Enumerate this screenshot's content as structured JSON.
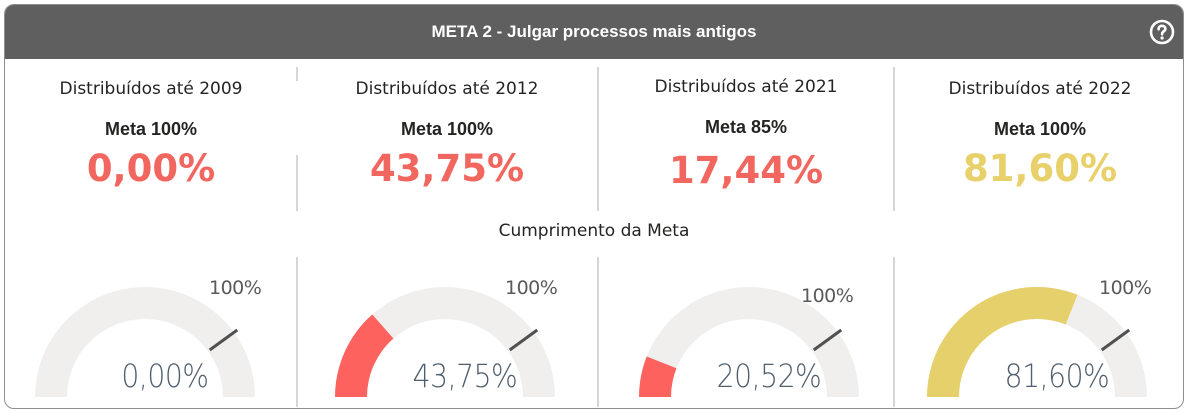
{
  "header": {
    "title": "META 2 - Julgar processos mais antigos",
    "help_icon": "question-circle-icon"
  },
  "cards": [
    {
      "title": "Distribuídos até 2009",
      "meta": "Meta 100%",
      "value": "0,00%",
      "value_color": "#f1665f"
    },
    {
      "title": "Distribuídos até 2012",
      "meta": "Meta 100%",
      "value": "43,75%",
      "value_color": "#f1665f"
    },
    {
      "title": "Distribuídos até 2021",
      "meta": "Meta 85%",
      "value": "17,44%",
      "value_color": "#f1665f"
    },
    {
      "title": "Distribuídos até 2022",
      "meta": "Meta 100%",
      "value": "81,60%",
      "value_color": "#e8d16a"
    }
  ],
  "subtitle": "Cumprimento da Meta",
  "gauges": [
    {
      "value_label": "0,00%",
      "fraction": 0.0,
      "target_fraction": 0.8,
      "max_label": "100%",
      "fill_color": "#fd625e"
    },
    {
      "value_label": "43,75%",
      "fraction": 0.27,
      "target_fraction": 0.8,
      "max_label": "100%",
      "fill_color": "#fd625e"
    },
    {
      "value_label": "20,52%",
      "fraction": 0.12,
      "target_fraction": 0.8,
      "max_label": "100%",
      "fill_color": "#fd625e"
    },
    {
      "value_label": "81,60%",
      "fraction": 0.62,
      "target_fraction": 0.8,
      "max_label": "100%",
      "fill_color": "#e5d06b"
    }
  ],
  "colors": {
    "header_bg": "#5f5f5f",
    "track": "#f0efee",
    "needle": "#505050"
  }
}
